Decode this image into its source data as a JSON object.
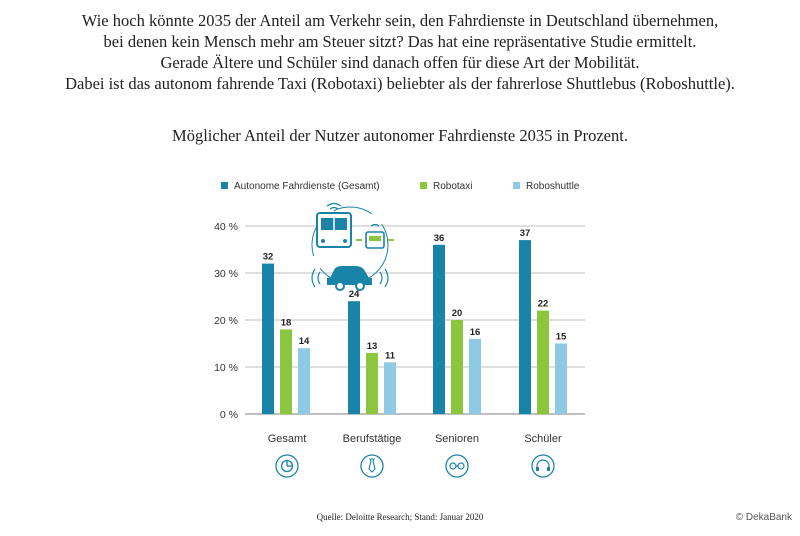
{
  "intro_lines": [
    "Wie hoch könnte 2035 der Anteil am Verkehr sein, den Fahrdienste in Deutschland übernehmen,",
    "bei denen kein Mensch mehr am Steuer sitzt? Das hat eine repräsentative Studie ermittelt.",
    "Gerade Ältere und Schüler sind danach offen für diese Art der Mobilität.",
    "Dabei ist das autonom fahrende Taxi (Robotaxi) beliebter als der fahrerlose Shuttlebus (Roboshuttle)."
  ],
  "source": "Quelle: Deloitte Research; Stand: Januar 2020",
  "copyright": "© DekaBank",
  "icons": [
    "car-bus-illustration",
    "pie-chart-icon",
    "tie-icon",
    "glasses-icon",
    "headphones-icon"
  ],
  "chart_data": {
    "type": "bar",
    "title": "Möglicher Anteil der Nutzer autonomer Fahrdienste 2035 in Prozent.",
    "categories": [
      "Gesamt",
      "Berufstätige",
      "Senioren",
      "Schüler"
    ],
    "series": [
      {
        "name": "Autonome Fahrdienste (Gesamt)",
        "color": "#1a84a8",
        "values": [
          32,
          24,
          36,
          37
        ]
      },
      {
        "name": "Robotaxi",
        "color": "#8cc63f",
        "values": [
          18,
          13,
          20,
          22
        ]
      },
      {
        "name": "Roboshuttle",
        "color": "#8ecae6",
        "values": [
          14,
          11,
          16,
          15
        ]
      }
    ],
    "yticks": [
      "0 %",
      "10 %",
      "20 %",
      "30 %",
      "40 %"
    ],
    "ylim": [
      0,
      40
    ],
    "grid": true,
    "legend": "top-left",
    "xlabel": "",
    "ylabel": ""
  }
}
